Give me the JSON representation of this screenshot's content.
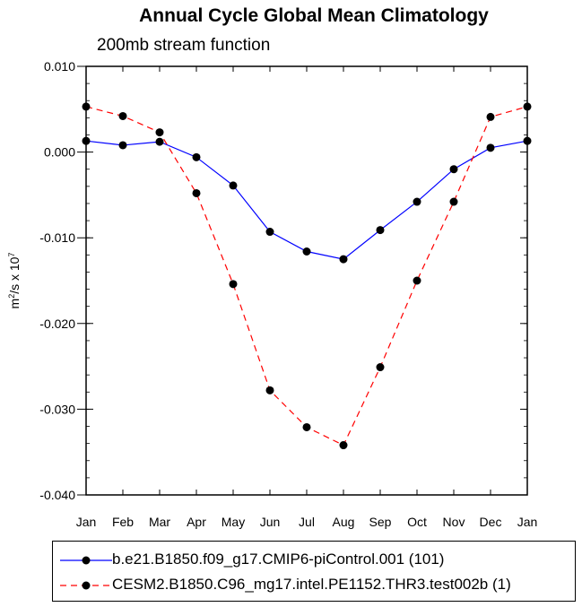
{
  "chart_data": {
    "type": "line",
    "title": "Annual Cycle Global Mean Climatology",
    "subtitle": "200mb stream function",
    "ylabel": "m²/s x 10⁷",
    "ylabel_parts": {
      "m": "m",
      "sup1": "2",
      "mid": "/s x 10",
      "sup2": "7"
    },
    "xlabel": "",
    "categories": [
      "Jan",
      "Feb",
      "Mar",
      "Apr",
      "May",
      "Jun",
      "Jul",
      "Aug",
      "Sep",
      "Oct",
      "Nov",
      "Dec",
      "Jan"
    ],
    "ylim": [
      -0.04,
      0.01
    ],
    "yticks": [
      0.01,
      0.0,
      -0.01,
      -0.02,
      -0.03,
      -0.04
    ],
    "ytick_labels": [
      "0.010",
      "0.000",
      "-0.010",
      "-0.020",
      "-0.030",
      "-0.040"
    ],
    "series": [
      {
        "name": "b.e21.B1850.f09_g17.CMIP6-piControl.001 (101)",
        "color": "#0000ff",
        "dash": "solid",
        "values": [
          0.0013,
          0.0008,
          0.0012,
          -0.0006,
          -0.0039,
          -0.0093,
          -0.0116,
          -0.0125,
          -0.0091,
          -0.0058,
          -0.002,
          0.0005,
          0.0013
        ]
      },
      {
        "name": "CESM2.B1850.C96_mg17.intel.PE1152.THR3.test002b (1)",
        "color": "#ff0000",
        "dash": "dashed",
        "values": [
          0.0053,
          0.0042,
          0.0023,
          -0.0048,
          -0.0154,
          -0.0278,
          -0.0321,
          -0.0342,
          -0.0251,
          -0.015,
          -0.0058,
          0.0041,
          0.0053
        ]
      }
    ],
    "legend_position": "bottom"
  }
}
